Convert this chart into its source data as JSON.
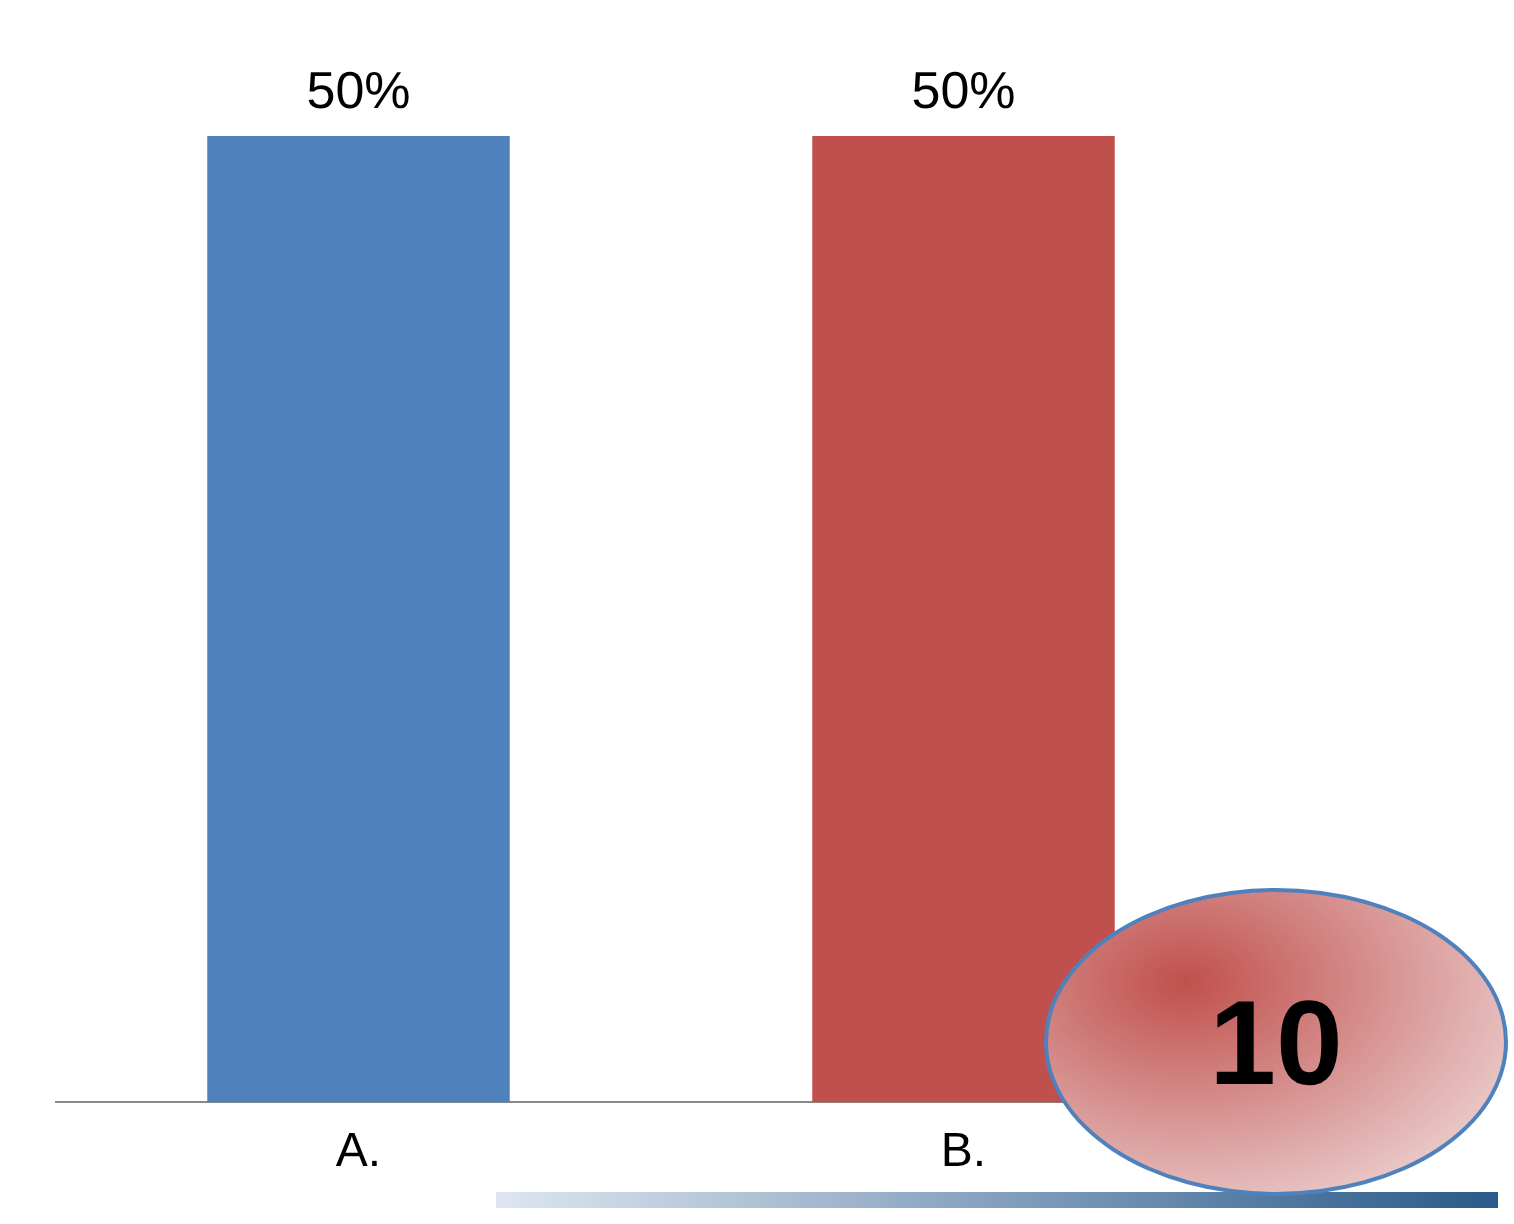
{
  "chart_data": {
    "type": "bar",
    "categories": [
      "A.",
      "B."
    ],
    "values": [
      50,
      50
    ],
    "colors": [
      "#4f81bd",
      "#c0504d"
    ],
    "value_labels": [
      "50%",
      "50%"
    ],
    "annotations": [
      "10"
    ],
    "legend": false,
    "grid": false
  }
}
